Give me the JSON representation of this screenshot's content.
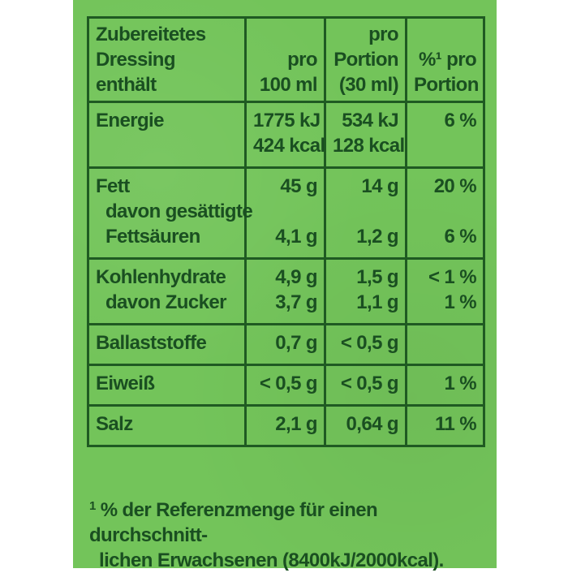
{
  "colors": {
    "panel_background": "#73c45a",
    "text": "#1a4f21",
    "border": "#1f5a22"
  },
  "header": {
    "col1": [
      "Zubereitetes",
      "Dressing",
      "enthält"
    ],
    "col2": [
      "pro",
      "100 ml"
    ],
    "col3": [
      "pro",
      "Portion",
      "(30 ml)"
    ],
    "col4": [
      "%¹ pro",
      "Portion"
    ]
  },
  "rows": {
    "energie": {
      "label": "Energie",
      "per100_kj": "1775 kJ",
      "per100_kcal": "424 kcal",
      "portion_kj": "534 kJ",
      "portion_kcal": "128 kcal",
      "percent": "6 %"
    },
    "fett": {
      "label": "Fett",
      "sub_label_1": "davon gesättigte",
      "sub_label_2": "Fettsäuren",
      "per100": "45 g",
      "per100_sub": "4,1 g",
      "portion": "14 g",
      "portion_sub": "1,2 g",
      "percent": "20 %",
      "percent_sub": "6 %"
    },
    "kohlenhydrate": {
      "label": "Kohlenhydrate",
      "sub_label": "davon Zucker",
      "per100": "4,9 g",
      "per100_sub": "3,7 g",
      "portion": "1,5 g",
      "portion_sub": "1,1 g",
      "percent": "< 1 %",
      "percent_sub": "1 %"
    },
    "ballaststoffe": {
      "label": "Ballaststoffe",
      "per100": "0,7 g",
      "portion": "< 0,5 g",
      "percent": ""
    },
    "eiweiss": {
      "label": "Eiweiß",
      "per100": "< 0,5 g",
      "portion": "< 0,5 g",
      "percent": "1 %"
    },
    "salz": {
      "label": "Salz",
      "per100": "2,1 g",
      "portion": "0,64 g",
      "percent": "11 %"
    }
  },
  "footnote": {
    "marker": "1",
    "line1": "% der Referenzmenge für einen durchschnitt-",
    "line2": "lichen Erwachsenen (8400kJ/2000kcal)."
  }
}
